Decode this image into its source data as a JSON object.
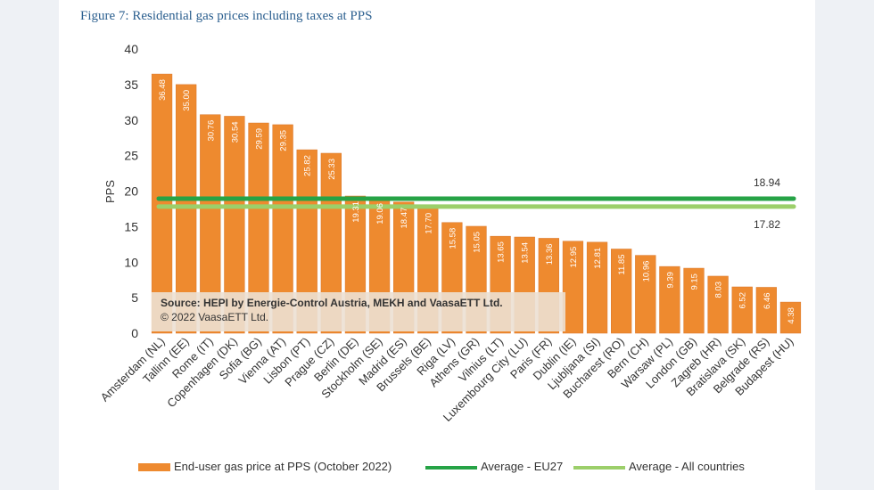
{
  "figure_title": "Figure 7: Residential gas prices including taxes at PPS",
  "source": {
    "line1": "Source: HEPI by Energie-Control Austria, MEKH and VaasaETT Ltd.",
    "line2": "© 2022 VaasaETT Ltd."
  },
  "colors": {
    "bar": "#ee8a2f",
    "eu27": "#26a346",
    "all_countries": "#9ccf6a"
  },
  "chart_data": {
    "type": "bar",
    "title": "Figure 7: Residential gas prices including taxes at PPS",
    "ylabel": "PPS",
    "xlabel": "",
    "ylim": [
      0,
      40
    ],
    "yticks": [
      0,
      5,
      10,
      15,
      20,
      25,
      30,
      35,
      40
    ],
    "grid": false,
    "legend_position": "bottom",
    "categories": [
      "Amsterdam (NL)",
      "Tallinn (EE)",
      "Rome (IT)",
      "Copenhagen (DK)",
      "Sofia (BG)",
      "Vienna (AT)",
      "Lisbon (PT)",
      "Prague (CZ)",
      "Berlin (DE)",
      "Stockholm (SE)",
      "Madrid (ES)",
      "Brussels (BE)",
      "Riga (LV)",
      "Athens (GR)",
      "Vilnius (LT)",
      "Luxembourg City (LU)",
      "Paris (FR)",
      "Dublin (IE)",
      "Ljubljana (SI)",
      "Bucharest (RO)",
      "Bern (CH)",
      "Warsaw (PL)",
      "London (GB)",
      "Zagreb (HR)",
      "Bratislava (SK)",
      "Belgrade (RS)",
      "Budapest (HU)"
    ],
    "series": [
      {
        "name": "End-user gas price at PPS (October 2022)",
        "values": [
          36.48,
          35.0,
          30.76,
          30.54,
          29.59,
          29.35,
          25.82,
          25.33,
          19.31,
          19.06,
          18.47,
          17.7,
          15.58,
          15.05,
          13.65,
          13.54,
          13.36,
          12.95,
          12.81,
          11.85,
          10.96,
          9.39,
          9.15,
          8.03,
          6.52,
          6.46,
          4.38
        ],
        "value_labels": [
          "36.48",
          "35.00",
          "30.76",
          "30.54",
          "29.59",
          "29.35",
          "25.82",
          "25.33",
          "19.31",
          "19.06",
          "18.47",
          "17.70",
          "15.58",
          "15.05",
          "13.65",
          "13.54",
          "13.36",
          "12.95",
          "12.81",
          "11.85",
          "10.96",
          "9.39",
          "9.15",
          "8.03",
          "6.52",
          "6.46",
          "4.38"
        ]
      }
    ],
    "reference_lines": [
      {
        "name": "Average - EU27",
        "value": 18.94,
        "label": "18.94",
        "color": "#26a346"
      },
      {
        "name": "Average - All countries",
        "value": 17.82,
        "label": "17.82",
        "color": "#9ccf6a"
      }
    ]
  }
}
